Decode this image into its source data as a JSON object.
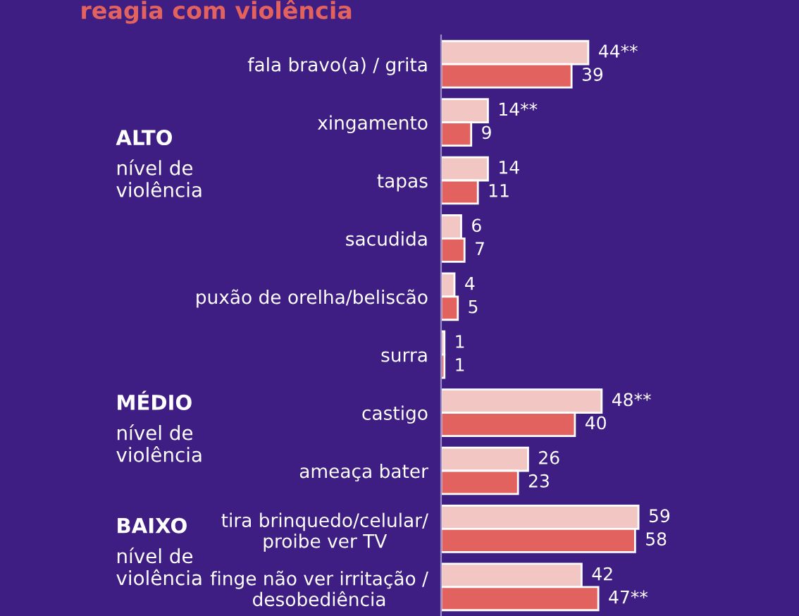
{
  "chart_data": {
    "type": "bar",
    "orientation": "horizontal",
    "title": "reagia com violência",
    "categories": [
      "fala bravo(a) / grita",
      "xingamento",
      "tapas",
      "sacudida",
      "puxão de orelha/beliscão",
      "surra",
      "castigo",
      "ameaça bater",
      "tira brinquedo/celular/\nproibe ver TV",
      "finge não ver irritação /\ndesobediência"
    ],
    "series": [
      {
        "color": "#f2c6c2",
        "values": [
          44,
          14,
          14,
          6,
          4,
          1,
          48,
          26,
          59,
          42
        ],
        "value_labels": [
          "44**",
          "14**",
          "14",
          "6",
          "4",
          "1",
          "48**",
          "26",
          "59",
          "42"
        ]
      },
      {
        "color": "#e2625f",
        "values": [
          39,
          9,
          11,
          7,
          5,
          1,
          40,
          23,
          58,
          47
        ],
        "value_labels": [
          "39",
          "9",
          "11",
          "7",
          "5",
          "1",
          "40",
          "23",
          "58",
          "47**"
        ]
      }
    ],
    "annotations": [
      "ALTO\nnível de\nviolência",
      "MÉDIO\nnível de\nviolência",
      "BAIXO\nnível de\nviolência"
    ],
    "xlim": [
      0,
      107
    ],
    "tick_labels": "y",
    "grid": false,
    "legend": false
  }
}
